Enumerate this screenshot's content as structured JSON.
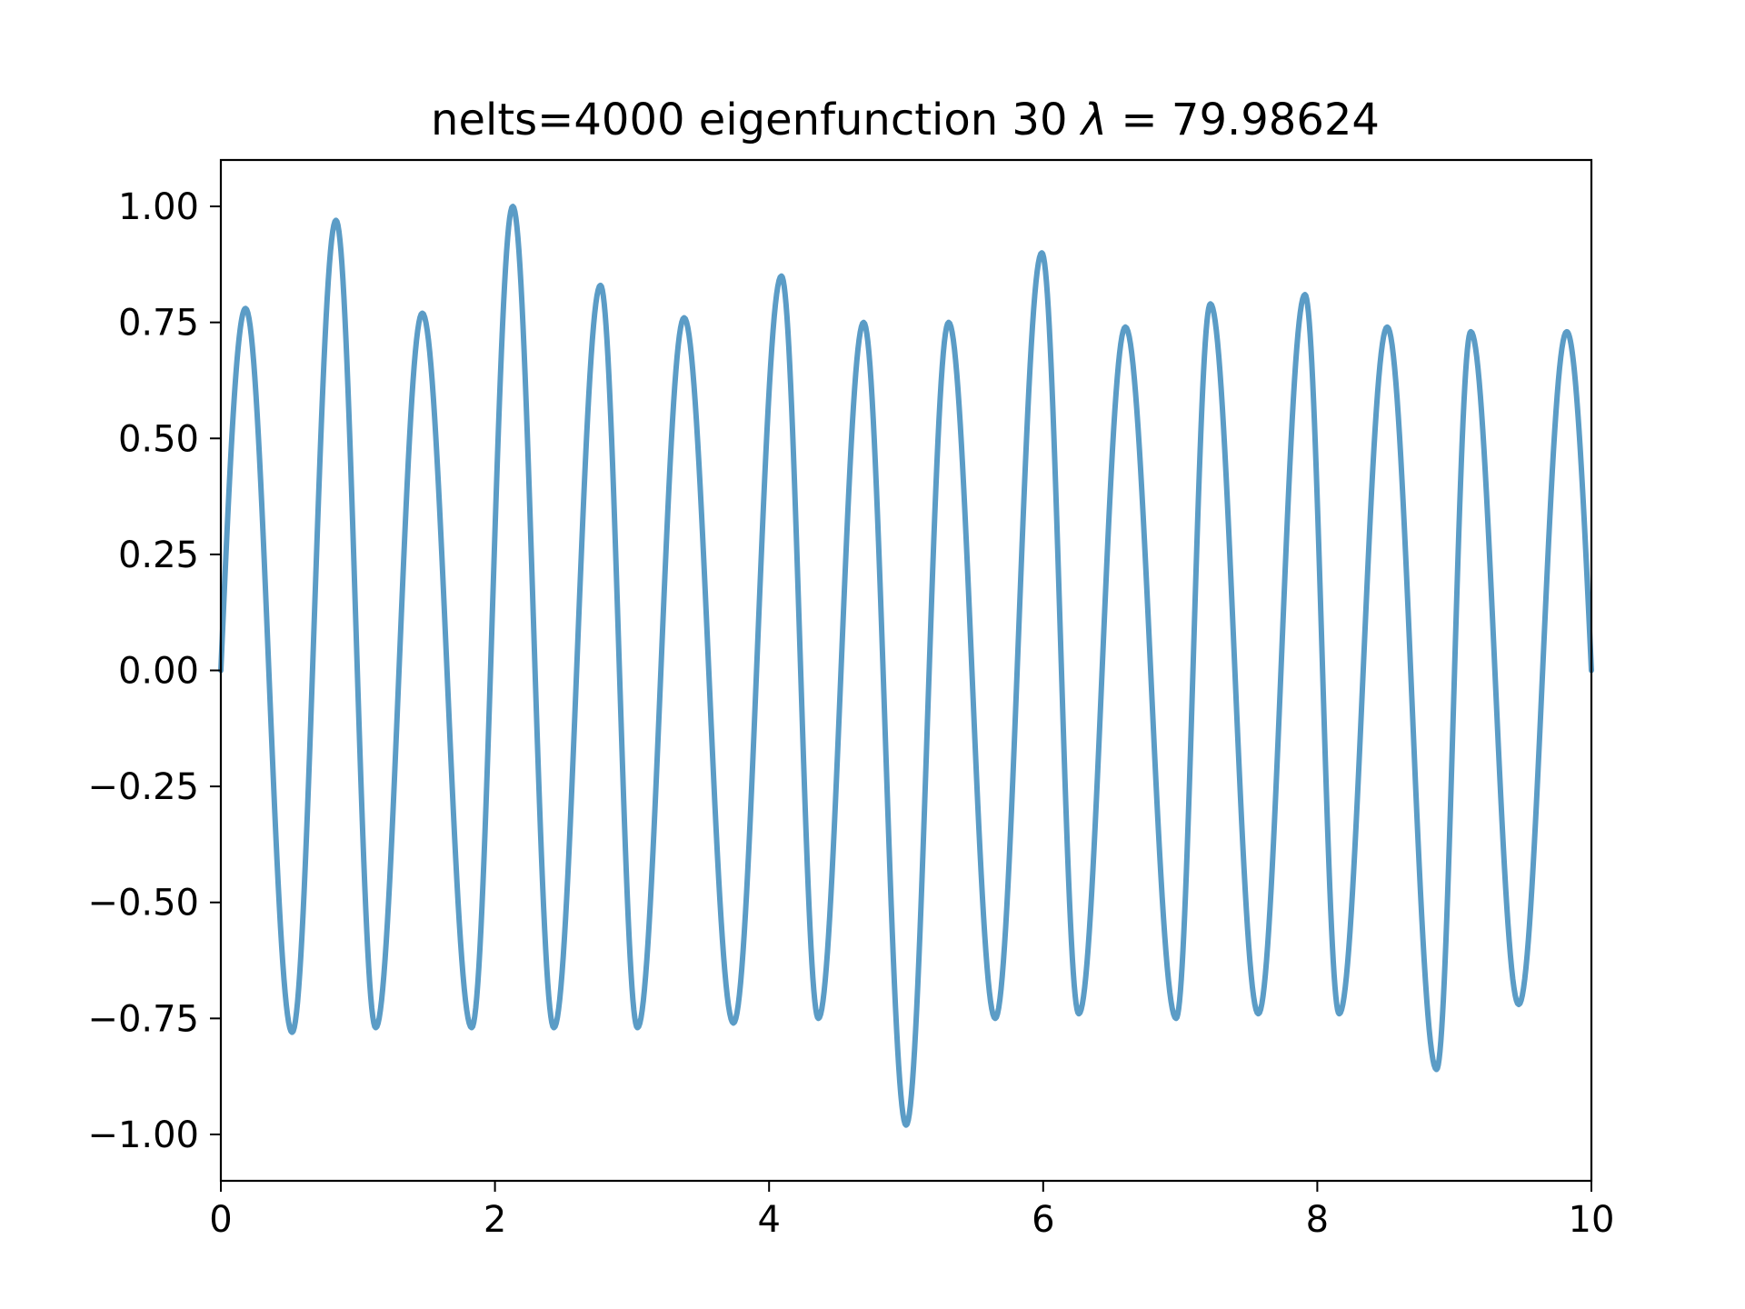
{
  "chart_data": {
    "type": "line",
    "title_text": "nelts=4000  eigenfunction 30  ",
    "title_lambda": "λ",
    "title_equals": " = 79.98624",
    "xlim": [
      0,
      10
    ],
    "ylim": [
      -1.1,
      1.1
    ],
    "x_ticks": [
      0,
      2,
      4,
      6,
      8,
      10
    ],
    "x_tick_labels": [
      "0",
      "2",
      "4",
      "6",
      "8",
      "10"
    ],
    "y_ticks": [
      1.0,
      0.75,
      0.5,
      0.25,
      0.0,
      -0.25,
      -0.5,
      -0.75,
      -1.0
    ],
    "y_tick_labels": [
      "1.00",
      "0.75",
      "0.50",
      "0.25",
      "0.00",
      "−0.25",
      "−0.50",
      "−0.75",
      "−1.00"
    ],
    "grid": false,
    "series": [
      {
        "color": "#5b9cc6",
        "extrema": [
          [
            0.0,
            0.0
          ],
          [
            0.18,
            0.78
          ],
          [
            0.52,
            -0.78
          ],
          [
            0.84,
            0.97
          ],
          [
            1.13,
            -0.77
          ],
          [
            1.47,
            0.77
          ],
          [
            1.83,
            -0.77
          ],
          [
            2.13,
            1.0
          ],
          [
            2.43,
            -0.77
          ],
          [
            2.77,
            0.83
          ],
          [
            3.04,
            -0.77
          ],
          [
            3.38,
            0.76
          ],
          [
            3.74,
            -0.76
          ],
          [
            4.09,
            0.85
          ],
          [
            4.36,
            -0.75
          ],
          [
            4.69,
            0.75
          ],
          [
            5.0,
            -0.98
          ],
          [
            5.31,
            0.75
          ],
          [
            5.65,
            -0.75
          ],
          [
            5.99,
            0.9
          ],
          [
            6.26,
            -0.74
          ],
          [
            6.6,
            0.74
          ],
          [
            6.97,
            -0.75
          ],
          [
            7.22,
            0.79
          ],
          [
            7.57,
            -0.74
          ],
          [
            7.91,
            0.81
          ],
          [
            8.16,
            -0.74
          ],
          [
            8.51,
            0.74
          ],
          [
            8.87,
            -0.86
          ],
          [
            9.12,
            0.73
          ],
          [
            9.47,
            -0.72
          ],
          [
            9.82,
            0.73
          ],
          [
            10.0,
            0.0
          ]
        ]
      }
    ]
  }
}
